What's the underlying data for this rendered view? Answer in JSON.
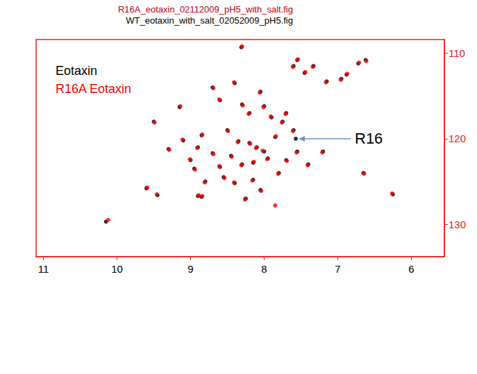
{
  "chart_data": {
    "type": "scatter",
    "title": "R16A_eotaxin_02112009_pH5_with_salt.fig",
    "subtitle": "WT_eotaxin_with_salt_02052009_pH5.fig",
    "xlim": [
      11.1,
      5.55
    ],
    "xticks": [
      11,
      10,
      9,
      8,
      7,
      6
    ],
    "ylim": [
      133.8,
      108.4
    ],
    "yticks": [
      110,
      120,
      130
    ],
    "grid": false,
    "legend": "upper left",
    "marker": "circle",
    "series": [
      {
        "name": "Eotaxin",
        "color": "#000000",
        "x": [
          8.31,
          7.33,
          7.45,
          7.15,
          6.72,
          6.62,
          6.88,
          6.95,
          7.55,
          7.6,
          8.7,
          8.6,
          9.15,
          8.05,
          8.4,
          8.3,
          8.2,
          8.0,
          7.9,
          7.75,
          7.7,
          7.6,
          7.57,
          7.85,
          9.5,
          9.1,
          9.3,
          8.85,
          8.5,
          8.35,
          8.2,
          8.1,
          8.0,
          7.95,
          8.15,
          8.3,
          8.45,
          8.6,
          8.7,
          8.9,
          9.0,
          8.8,
          8.55,
          8.4,
          8.15,
          8.05,
          7.8,
          7.7,
          7.55,
          7.4,
          7.2,
          8.9,
          8.85,
          9.6,
          9.45,
          10.15,
          6.25,
          6.65,
          8.95,
          8.25
        ],
        "y": [
          109.3,
          111.5,
          112.3,
          113.3,
          111.2,
          110.8,
          112.5,
          113.0,
          110.8,
          111.5,
          114.0,
          115.5,
          116.3,
          114.5,
          113.5,
          116.0,
          117.0,
          116.2,
          117.5,
          118.0,
          117.0,
          119.0,
          120.0,
          119.8,
          118.0,
          120.2,
          121.2,
          119.6,
          119.0,
          120.3,
          120.5,
          121.0,
          121.5,
          122.3,
          122.8,
          123.0,
          122.0,
          123.3,
          121.7,
          121.0,
          122.5,
          125.0,
          124.5,
          125.2,
          124.8,
          126.0,
          124.0,
          122.5,
          121.5,
          123.0,
          121.5,
          126.7,
          126.8,
          125.8,
          126.6,
          129.7,
          126.5,
          124.0,
          123.5,
          127.0
        ]
      },
      {
        "name": "R16A Eotaxin",
        "color": "#ff0000",
        "x": [
          8.3,
          7.34,
          7.44,
          7.16,
          6.71,
          6.61,
          6.87,
          6.96,
          7.54,
          7.61,
          8.69,
          8.61,
          9.14,
          8.06,
          8.41,
          8.29,
          8.21,
          8.01,
          7.91,
          7.76,
          7.71,
          7.61,
          7.84,
          9.49,
          9.11,
          9.29,
          8.84,
          8.49,
          8.36,
          8.19,
          8.11,
          8.02,
          7.96,
          8.14,
          8.31,
          8.44,
          8.61,
          8.69,
          8.91,
          9.01,
          8.81,
          8.54,
          8.41,
          8.16,
          8.04,
          7.81,
          7.69,
          7.56,
          7.41,
          7.21,
          8.89,
          8.84,
          9.59,
          9.46,
          10.12,
          7.85,
          6.26,
          6.64,
          8.94,
          8.26
        ],
        "y": [
          109.2,
          111.6,
          112.2,
          113.4,
          111.1,
          110.9,
          112.4,
          113.1,
          110.7,
          111.6,
          114.1,
          115.4,
          116.2,
          114.6,
          113.4,
          116.1,
          117.1,
          116.3,
          117.4,
          118.1,
          117.1,
          119.1,
          119.7,
          118.1,
          120.1,
          121.3,
          119.5,
          119.1,
          120.4,
          120.6,
          121.1,
          121.4,
          122.4,
          122.7,
          123.1,
          122.1,
          123.2,
          121.8,
          121.1,
          122.4,
          125.1,
          124.6,
          125.1,
          124.9,
          126.1,
          124.1,
          122.6,
          121.6,
          123.1,
          121.6,
          126.6,
          126.7,
          125.7,
          126.5,
          129.5,
          127.8,
          126.4,
          124.1,
          123.6,
          127.1
        ]
      }
    ],
    "annotations": [
      {
        "text": "R16",
        "x": 7.57,
        "y": 120.0
      }
    ]
  }
}
